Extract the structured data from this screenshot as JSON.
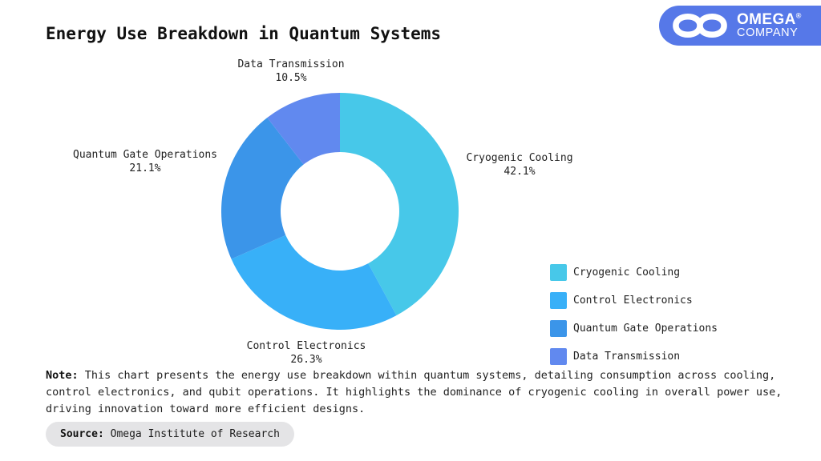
{
  "title": "Energy Use Breakdown in Quantum Systems",
  "logo": {
    "brand": "OMEGA",
    "registered": "®",
    "company": "COMPANY",
    "bg_color": "#5678E8"
  },
  "chart_data": {
    "type": "pie",
    "subtype": "donut",
    "title": "Energy Use Breakdown in Quantum Systems",
    "categories": [
      "Cryogenic Cooling",
      "Control Electronics",
      "Quantum Gate Operations",
      "Data Transmission"
    ],
    "values": [
      42.1,
      26.3,
      21.1,
      10.5
    ],
    "pct_labels": [
      "42.1%",
      "26.3%",
      "21.1%",
      "10.5%"
    ],
    "colors": [
      "#47C8E9",
      "#38B0F8",
      "#3B95E9",
      "#6189EF"
    ],
    "start_angle_deg": 0,
    "direction": "clockwise",
    "inner_radius_ratio": 0.5,
    "legend_position": "right"
  },
  "note": {
    "prefix": "Note:",
    "text": " This chart presents the energy use breakdown within quantum systems, detailing consumption across cooling,\ncontrol electronics, and qubit operations. It highlights the dominance of cryogenic cooling in overall power use,\ndriving innovation toward more efficient designs."
  },
  "source": {
    "prefix": "Source:",
    "text": " Omega Institute of Research"
  }
}
